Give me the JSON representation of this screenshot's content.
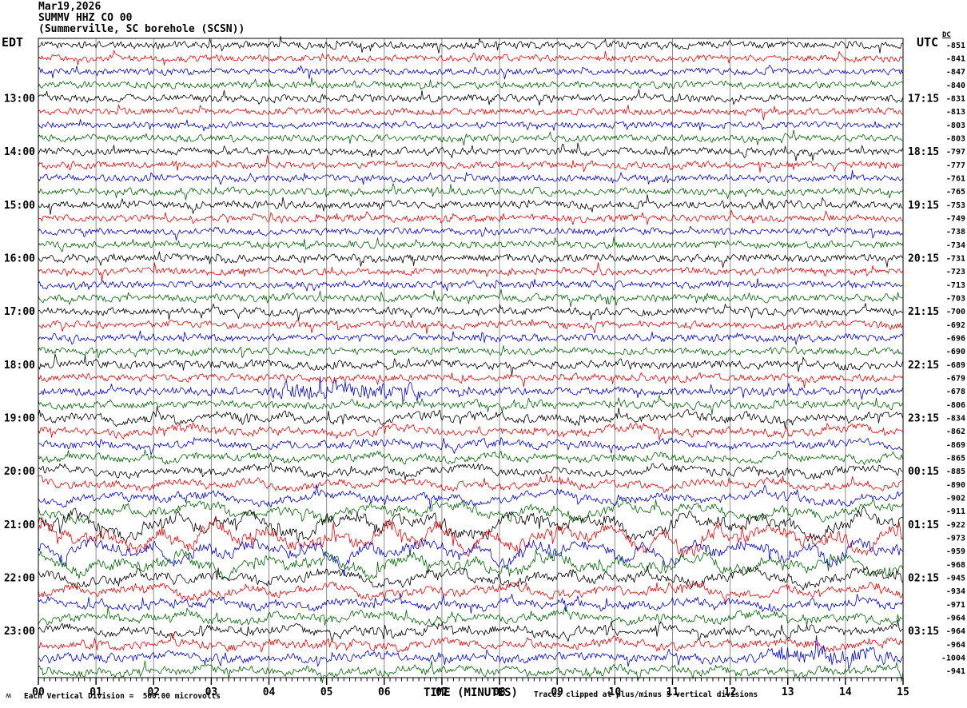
{
  "header": {
    "date": "Mar19,2026",
    "station": "SUMMV HHZ CO 00",
    "location": "(Summerville, SC borehole (SCSN))",
    "left_tz": "EDT",
    "right_tz": "UTC",
    "dc_label": "DC"
  },
  "footer": {
    "scale_note": "Each Vertical Division =  500.00 microvolts",
    "x_title": "TIME (MINUTES)",
    "clip_note": "Traces clipped at plus/minus 5 vertical divisions",
    "watermark": "ʍ"
  },
  "chart_data": {
    "type": "line",
    "subtype": "helicorder-seismogram",
    "title": "SUMMV HHZ CO 00 (Summerville, SC borehole (SCSN)) Mar19,2026",
    "xlabel": "TIME (MINUTES)",
    "x_axis": {
      "range_minutes": [
        0,
        15
      ],
      "major_tick_labels": [
        "00",
        "01",
        "02",
        "03",
        "04",
        "05",
        "06",
        "07",
        "08",
        "09",
        "10",
        "11",
        "12",
        "13",
        "14",
        "15"
      ],
      "minor_ticks_per_minute": 10
    },
    "minutes_per_row": 15,
    "vertical_division_microvolts": 500.0,
    "clip_divisions": 5,
    "grid_color": "#8c8c8c",
    "frame_color": "#000000",
    "trace_color_cycle": [
      "#000000",
      "#ee0000",
      "#0000dd",
      "#006600"
    ],
    "rows": [
      {
        "dc": -851,
        "amp": 5.0,
        "lf": 0.1
      },
      {
        "dc": -841,
        "amp": 4.6,
        "lf": 0.1
      },
      {
        "dc": -847,
        "amp": 4.6,
        "lf": 0.1
      },
      {
        "dc": -840,
        "amp": 4.8,
        "lf": 0.1
      },
      {
        "edt": "13:00",
        "utc": "17:15",
        "dc": -831,
        "amp": 5.2,
        "lf": 0.1
      },
      {
        "dc": -813,
        "amp": 4.8,
        "lf": 0.1
      },
      {
        "dc": -803,
        "amp": 4.6,
        "lf": 0.1
      },
      {
        "dc": -803,
        "amp": 4.8,
        "lf": 0.12
      },
      {
        "edt": "14:00",
        "utc": "18:15",
        "dc": -797,
        "amp": 5.2,
        "lf": 0.12
      },
      {
        "dc": -777,
        "amp": 4.8,
        "lf": 0.12
      },
      {
        "dc": -761,
        "amp": 4.8,
        "lf": 0.12
      },
      {
        "dc": -765,
        "amp": 5.0,
        "lf": 0.12
      },
      {
        "edt": "15:00",
        "utc": "19:15",
        "dc": -753,
        "amp": 5.4,
        "lf": 0.15
      },
      {
        "dc": -749,
        "amp": 5.0,
        "lf": 0.15
      },
      {
        "dc": -738,
        "amp": 4.8,
        "lf": 0.15
      },
      {
        "dc": -734,
        "amp": 5.0,
        "lf": 0.15
      },
      {
        "edt": "16:00",
        "utc": "20:15",
        "dc": -731,
        "amp": 5.4,
        "lf": 0.15
      },
      {
        "dc": -723,
        "amp": 5.0,
        "lf": 0.15
      },
      {
        "dc": -713,
        "amp": 5.0,
        "lf": 0.15
      },
      {
        "dc": -703,
        "amp": 5.2,
        "lf": 0.15
      },
      {
        "edt": "17:00",
        "utc": "21:15",
        "dc": -700,
        "amp": 5.6,
        "lf": 0.18
      },
      {
        "dc": -692,
        "amp": 5.2,
        "lf": 0.18
      },
      {
        "dc": -696,
        "amp": 5.2,
        "lf": 0.18
      },
      {
        "dc": -690,
        "amp": 5.2,
        "lf": 0.18
      },
      {
        "edt": "18:00",
        "utc": "22:15",
        "dc": -689,
        "amp": 6.0,
        "lf": 0.2
      },
      {
        "dc": -679,
        "amp": 5.4,
        "lf": 0.2
      },
      {
        "dc": -678,
        "amp": 5.6,
        "lf": 0.15,
        "events": [
          [
            3.9,
            6.9,
            2.2
          ]
        ]
      },
      {
        "dc": -806,
        "amp": 5.8,
        "lf": 0.25
      },
      {
        "edt": "19:00",
        "utc": "23:15",
        "dc": -834,
        "amp": 7.0,
        "lf": 0.45
      },
      {
        "dc": -862,
        "amp": 6.6,
        "lf": 0.45
      },
      {
        "dc": -869,
        "amp": 6.0,
        "lf": 0.4
      },
      {
        "dc": -865,
        "amp": 6.2,
        "lf": 0.4
      },
      {
        "edt": "20:00",
        "utc": "00:15",
        "dc": -885,
        "amp": 6.6,
        "lf": 0.5
      },
      {
        "dc": -890,
        "amp": 6.6,
        "lf": 0.55
      },
      {
        "dc": -902,
        "amp": 7.2,
        "lf": 0.6
      },
      {
        "dc": -911,
        "amp": 8.5,
        "lf": 0.7
      },
      {
        "edt": "21:00",
        "utc": "01:15",
        "dc": -922,
        "amp": 12.0,
        "lf": 0.8
      },
      {
        "dc": -973,
        "amp": 12.5,
        "lf": 0.82
      },
      {
        "dc": -959,
        "amp": 11.0,
        "lf": 0.78
      },
      {
        "dc": -968,
        "amp": 10.0,
        "lf": 0.75
      },
      {
        "edt": "22:00",
        "utc": "02:15",
        "dc": -945,
        "amp": 8.5,
        "lf": 0.65
      },
      {
        "dc": -934,
        "amp": 7.5,
        "lf": 0.6
      },
      {
        "dc": -971,
        "amp": 7.0,
        "lf": 0.5
      },
      {
        "dc": -964,
        "amp": 7.0,
        "lf": 0.5
      },
      {
        "edt": "23:00",
        "utc": "03:15",
        "dc": -964,
        "amp": 7.0,
        "lf": 0.5
      },
      {
        "dc": -964,
        "amp": 6.6,
        "lf": 0.45
      },
      {
        "dc": -1004,
        "amp": 6.6,
        "lf": 0.35,
        "events": [
          [
            12.5,
            15,
            2.0
          ]
        ]
      },
      {
        "dc": -941,
        "amp": 6.6,
        "lf": 0.45
      }
    ]
  }
}
